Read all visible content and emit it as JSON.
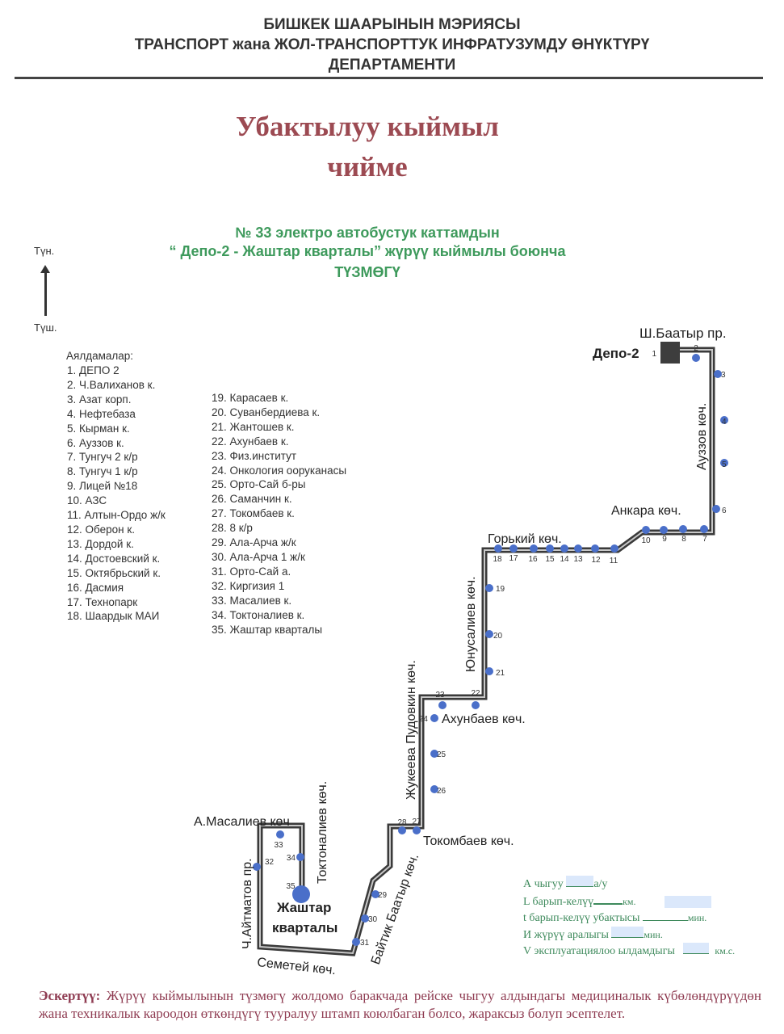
{
  "header": {
    "line1": "БИШКЕК ШААРЫНЫН МЭРИЯСЫ",
    "line2": "ТРАНСПОРТ жана ЖОЛ-ТРАНСПОРТТУК ИНФРАТУЗУМДУ ӨНҮКТҮРҮ",
    "line3": "ДЕПАРТАМЕНТИ"
  },
  "title": {
    "line1": "Убактылуу кыймыл",
    "line2": "чийме"
  },
  "subtitle": {
    "line1": "№ 33 электро автобустук каттамдын",
    "line2": "“ Депо-2  - Жаштар кварталы” жүрүү кыймылы боюнча",
    "line3": "ТҮЗМӨГҮ"
  },
  "compass": {
    "north": "Түн.",
    "south": "Түш."
  },
  "stops_heading": "Аялдамалар:",
  "stops": [
    "1. ДЕПО 2",
    "2. Ч.Валиханов к.",
    "3. Азат корп.",
    "4. Нефтебаза",
    "5. Кырман к.",
    "6. Ауззов к.",
    "7. Тунгуч 2 к/р",
    "8. Тунгуч 1 к/р",
    "9. Лицей №18",
    "10. АЗС",
    "11. Алтын-Ордо ж/к",
    "12. Оберон к.",
    "13. Дордой к.",
    "14. Достоевский к.",
    "15. Октябрьский к.",
    "16. Дасмия",
    "17. Технопарк",
    "18. Шаардык МАИ",
    "19. Карасаев к.",
    "20. Суванбердиева к.",
    "21. Жантошев к.",
    "22. Ахунбаев к.",
    "23. Физ.институт",
    "24. Онкология ооруканасы",
    "25. Орто-Сай б-ры",
    "26. Саманчин к.",
    "27. Токомбаев к.",
    "28. 8 к/р",
    "29. Ала-Арча ж/к",
    "30. Ала-Арча 1 ж/к",
    "31. Орто-Сай а.",
    "32. Киргизия 1",
    "33. Масалиев к.",
    "34. Токтоналиев к.",
    "35. Жаштар кварталы"
  ],
  "map": {
    "stop_numbers": [
      "1",
      "2",
      "3",
      "4",
      "5",
      "6",
      "7",
      "8",
      "9",
      "10",
      "11",
      "12",
      "13",
      "14",
      "15",
      "16",
      "17",
      "18",
      "19",
      "20",
      "21",
      "22",
      "23",
      "24",
      "25",
      "26",
      "27",
      "28",
      "29",
      "30",
      "31",
      "32",
      "33",
      "34",
      "35"
    ],
    "streets": {
      "shabaatyr": "Ш.Баатыр пр.",
      "depo": "Депо-2",
      "auezov": "Ауззов көч.",
      "ankara": "Анкара көч.",
      "gorky": "Горький көч.",
      "yunusaliev": "Юнусалиев көч.",
      "zhukeev": "Жукеева Пудовкин көч.",
      "akhunbaev": "Ахунбаев көч.",
      "tokombaev": "Токомбаев көч.",
      "baitik": "Байтик Баатыр көч.",
      "masaliev": "А.Масалиев көч",
      "toktonaliev": "Токтоналиев көч.",
      "aitmatov": "Ч.Айтматов пр.",
      "zhashtar1": "Жаштар",
      "zhashtar2": "кварталы",
      "semetei": "Семетей көч."
    },
    "colors": {
      "route": "#3a3a3a",
      "stop": "#4a6fc9",
      "depot": "#3d3d3d"
    }
  },
  "form": {
    "a_label": "А чыгуу",
    "a_unit": "а/у",
    "l_label": "L барып-келүү",
    "l_unit": "км.",
    "t_label": "t барып-келүү убактысы",
    "t_unit": "мин.",
    "i_label": "И жүрүү аралыгы",
    "i_unit": "мин.",
    "v_label": "V эксплуатациялоо ылдамдыгы",
    "v_unit": "км.с."
  },
  "note": {
    "label": "Эскертүү:",
    "text": "Жүрүү кыймылынын түзмөгү жолдомо баракчада рейске чыгуу алдындагы медициналык күбөлөндүрүүдөн жана техникалык кароодон өткөндүгү тууралуу штамп коюлбаган болсо, жараксыз болуп эсептелет."
  }
}
